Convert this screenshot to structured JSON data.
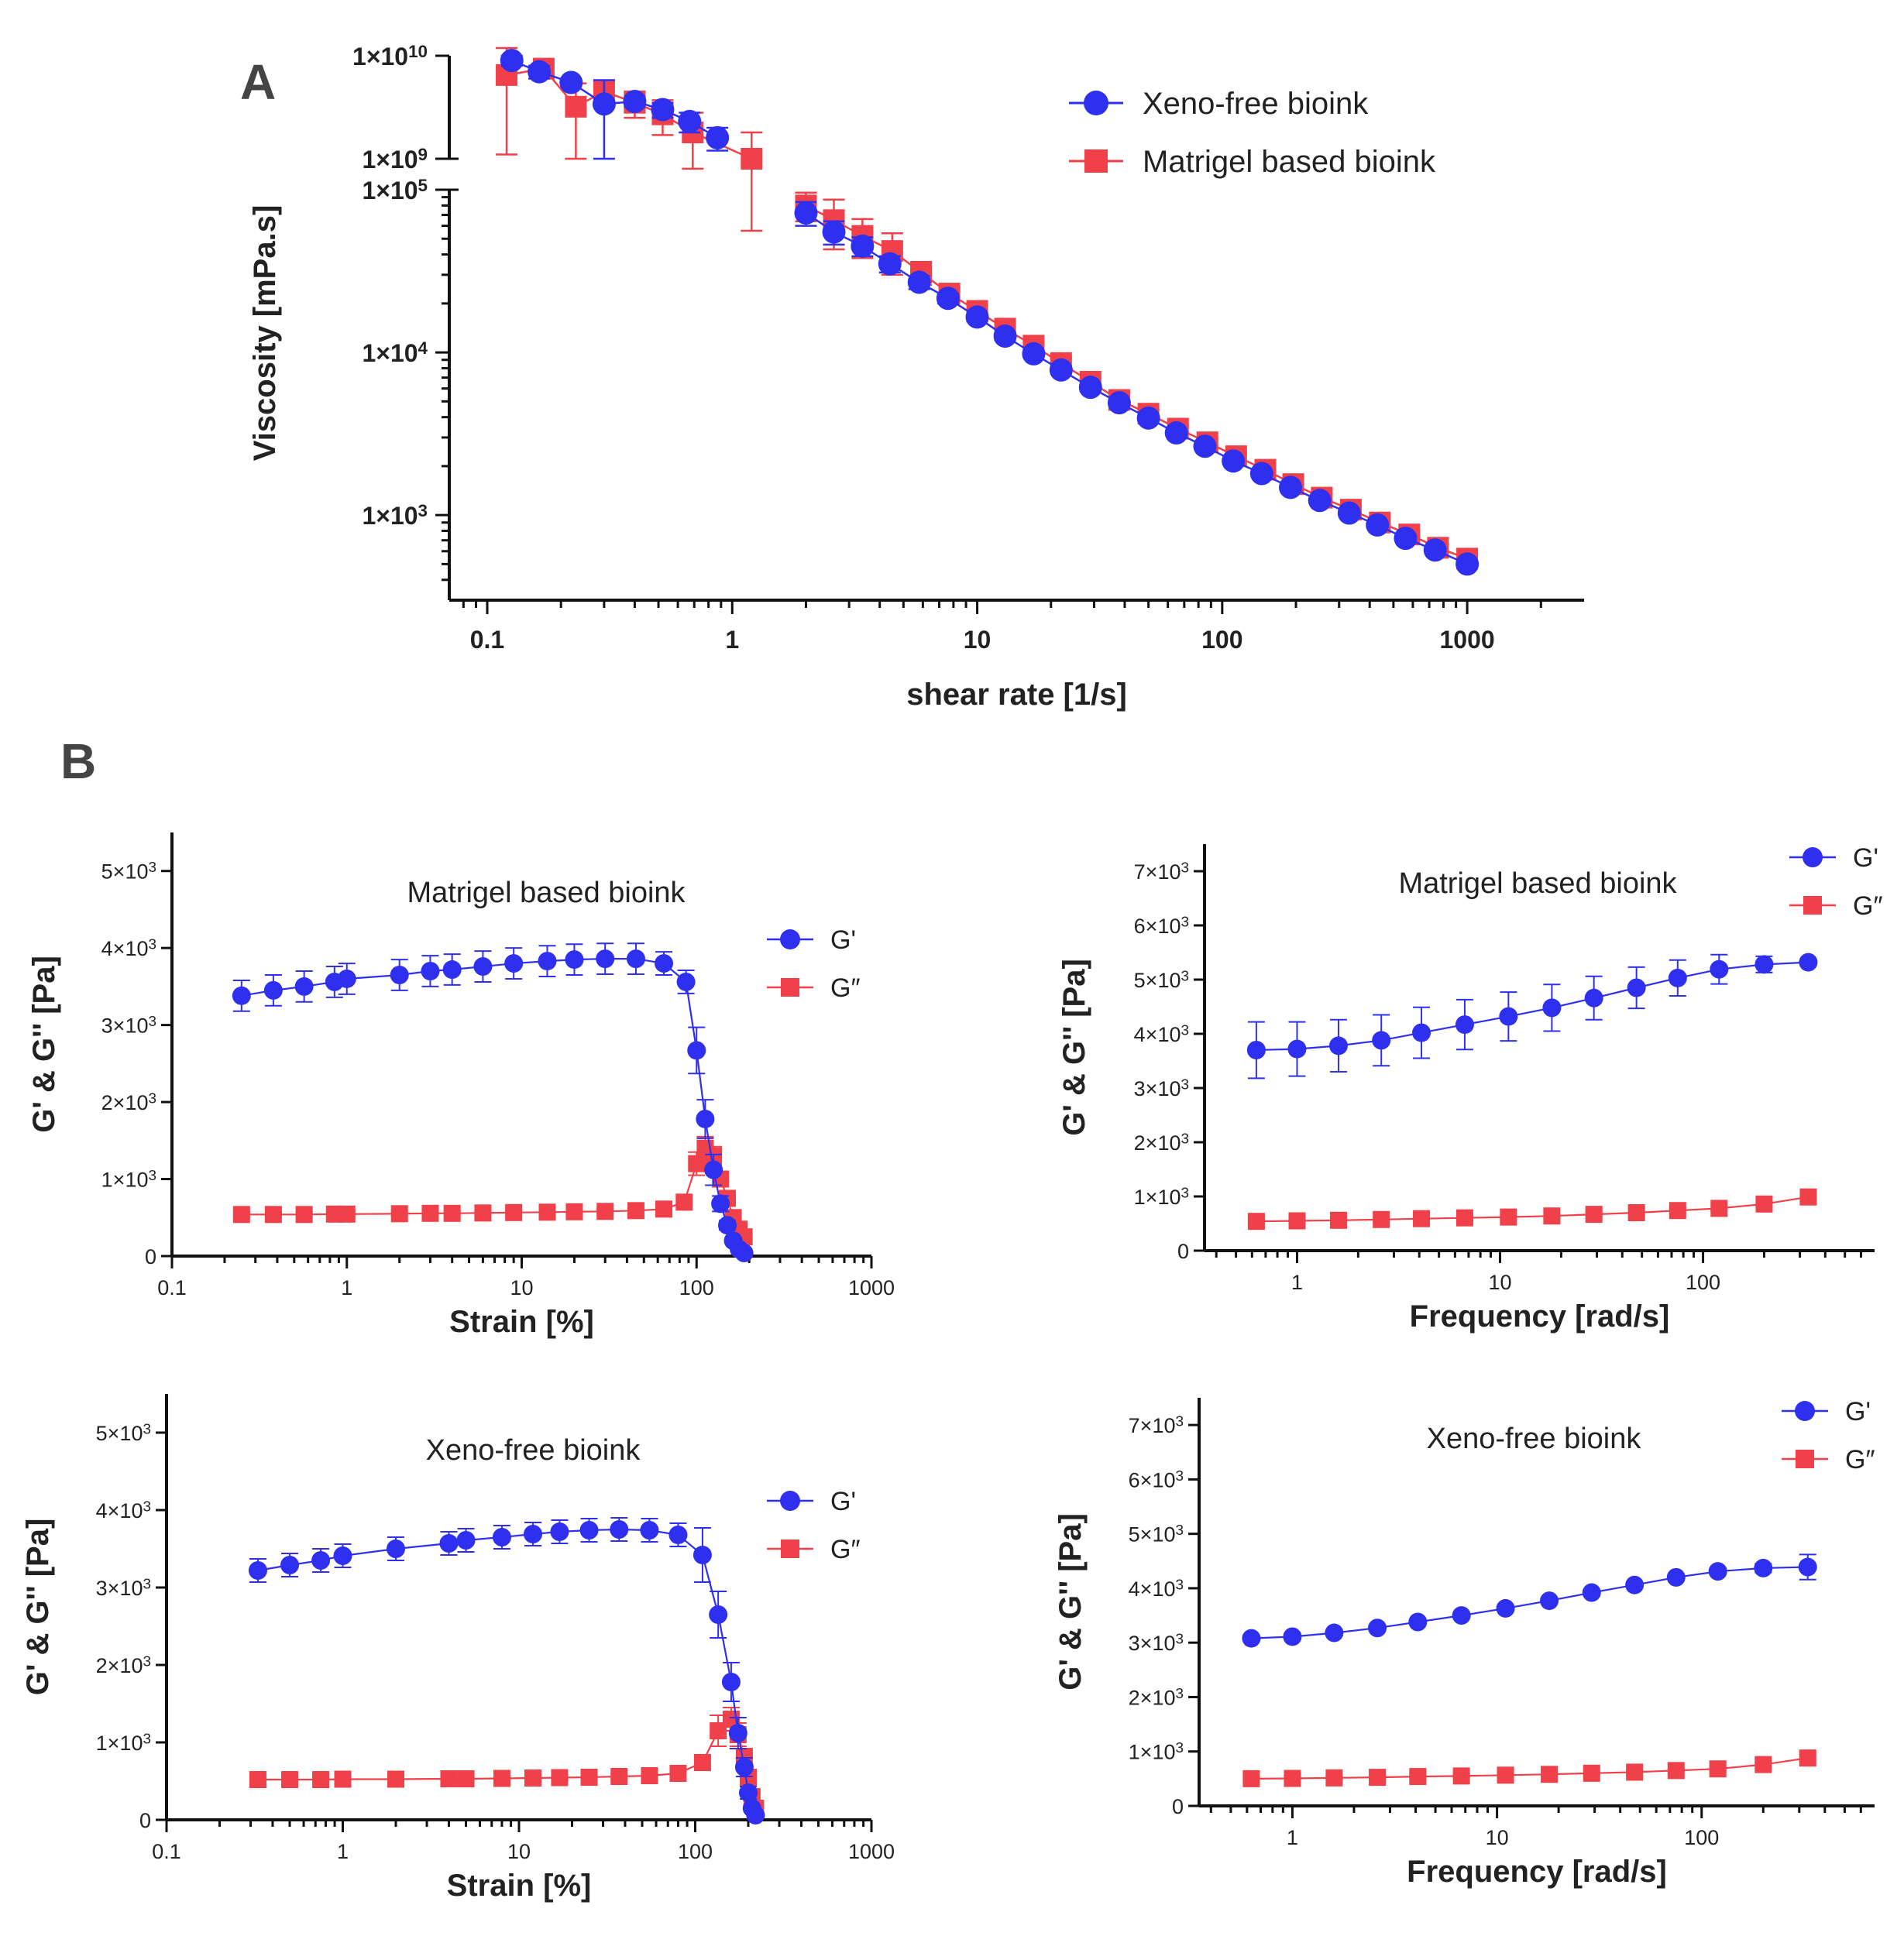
{
  "colors": {
    "xeno": "#2f2ff0",
    "matrigel": "#f0404a",
    "axis": "#111111"
  },
  "panel_labels": {
    "a": "A",
    "b": "B"
  },
  "chart_data": [
    {
      "id": "A",
      "type": "scatter",
      "title": "",
      "xlabel": "shear rate [1/s]",
      "ylabel": "Viscosity [mPa.s]",
      "xscale": "log",
      "yscale": "log-broken",
      "xlim": [
        0.07,
        3000
      ],
      "y_segments": [
        {
          "range": [
            1000000000.0,
            10000000000.0
          ]
        },
        {
          "range": [
            300,
            100000
          ]
        }
      ],
      "x_tick_values": [
        0.1,
        1,
        10,
        100,
        1000
      ],
      "x_tick_labels": [
        "0.1",
        "1",
        "10",
        "100",
        "1000"
      ],
      "y_tick_values": [
        10000000000.0,
        1000000000.0,
        100000,
        10000,
        1000
      ],
      "y_tick_labels": [
        {
          "base": "1×10",
          "exp": "10"
        },
        {
          "base": "1×10",
          "exp": "9"
        },
        {
          "base": "1×10",
          "exp": "5"
        },
        {
          "base": "1×10",
          "exp": "4"
        },
        {
          "base": "1×10",
          "exp": "3"
        }
      ],
      "legend": [
        "Xeno-free bioink",
        "Matrigel based bioink"
      ],
      "legend_position": "top-right",
      "series": [
        {
          "name": "Xeno-free bioink",
          "marker": "circle",
          "color_key": "xeno",
          "x": [
            0.126,
            0.163,
            0.22,
            0.3,
            0.4,
            0.52,
            0.67,
            0.87,
            2.0,
            2.6,
            3.4,
            4.4,
            5.8,
            7.6,
            10,
            13,
            17,
            22,
            29,
            38,
            50,
            65,
            85,
            111,
            145,
            190,
            250,
            330,
            430,
            560,
            740,
            1000
          ],
          "y": [
            9000000000.0,
            7000000000.0,
            5500000000.0,
            3400000000.0,
            3600000000.0,
            3000000000.0,
            2300000000.0,
            1600000000.0,
            72000,
            55000,
            45000,
            35000,
            27000,
            21500,
            16500,
            12600,
            9800,
            7800,
            6100,
            4900,
            3950,
            3200,
            2650,
            2150,
            1800,
            1480,
            1230,
            1030,
            870,
            720,
            610,
            500
          ],
          "err": [
            1000000000.0,
            1000000000.0,
            300000000.0,
            2400000000.0,
            400000000.0,
            500000000.0,
            500000000.0,
            400000000.0,
            12000,
            9000,
            6000,
            4000,
            2500,
            1500,
            1000,
            700,
            500,
            400,
            300,
            200,
            150,
            120,
            100,
            80,
            60,
            50,
            40,
            35,
            30,
            25,
            25,
            20
          ]
        },
        {
          "name": "Matrigel based bioink",
          "marker": "square",
          "color_key": "matrigel",
          "x": [
            0.12,
            0.17,
            0.23,
            0.3,
            0.4,
            0.52,
            0.69,
            1.2,
            2.0,
            2.6,
            3.4,
            4.5,
            5.9,
            7.7,
            10,
            13,
            17,
            22,
            29,
            38,
            50,
            66,
            87,
            114,
            150,
            195,
            255,
            335,
            440,
            580,
            760,
            1000
          ],
          "y": [
            6500000000.0,
            7500000000.0,
            3200000000.0,
            4500000000.0,
            3500000000.0,
            2700000000.0,
            1800000000.0,
            1000000000.0,
            80000,
            65000,
            52000,
            42000,
            31000,
            23000,
            18000,
            14000,
            11000,
            8600,
            6600,
            5100,
            4200,
            3400,
            2800,
            2300,
            1900,
            1550,
            1280,
            1080,
            900,
            760,
            630,
            540
          ],
          "err": [
            5400000000.0,
            1000000000.0,
            2200000000.0,
            1000000000.0,
            1000000000.0,
            1000000000.0,
            1000000000.0,
            800000000.0,
            16000,
            22000,
            14000,
            12000,
            5000,
            2000,
            1500,
            1000,
            800,
            600,
            400,
            300,
            250,
            200,
            150,
            120,
            100,
            80,
            60,
            50,
            40,
            35,
            30,
            25
          ]
        }
      ]
    },
    {
      "id": "B1",
      "type": "scatter",
      "title": "Matrigel based bioink",
      "xlabel": "Strain [%]",
      "ylabel": "G' & G'' [Pa]",
      "xscale": "log",
      "xlim": [
        0.1,
        1000
      ],
      "ylim": [
        0,
        5500
      ],
      "x_tick_values": [
        0.1,
        1,
        10,
        100,
        1000
      ],
      "x_tick_labels": [
        "0.1",
        "1",
        "10",
        "100",
        "1000"
      ],
      "y_tick_values": [
        0,
        1000,
        2000,
        3000,
        4000,
        5000
      ],
      "y_tick_labels": [
        {
          "base": "0",
          "exp": ""
        },
        {
          "base": "1×10",
          "exp": "3"
        },
        {
          "base": "2×10",
          "exp": "3"
        },
        {
          "base": "3×10",
          "exp": "3"
        },
        {
          "base": "4×10",
          "exp": "3"
        },
        {
          "base": "5×10",
          "exp": "3"
        }
      ],
      "legend": [
        "G'",
        "G″"
      ],
      "legend_position": "top-right",
      "series": [
        {
          "name": "G'",
          "marker": "circle",
          "color_key": "xeno",
          "x": [
            0.25,
            0.38,
            0.57,
            0.85,
            1.0,
            2.0,
            3.0,
            4.0,
            6.0,
            9.0,
            14,
            20,
            30,
            45,
            65,
            87,
            100,
            112,
            125,
            137,
            150,
            162,
            175,
            187
          ],
          "y": [
            3380,
            3450,
            3500,
            3560,
            3600,
            3650,
            3700,
            3720,
            3760,
            3800,
            3830,
            3850,
            3860,
            3860,
            3800,
            3560,
            2670,
            1780,
            1120,
            680,
            400,
            200,
            90,
            40
          ],
          "err": [
            200,
            200,
            200,
            200,
            200,
            200,
            200,
            200,
            200,
            200,
            200,
            200,
            200,
            200,
            150,
            150,
            300,
            250,
            200,
            100,
            60,
            40,
            20,
            15
          ]
        },
        {
          "name": "G″",
          "marker": "square",
          "color_key": "matrigel",
          "x": [
            0.25,
            0.38,
            0.57,
            0.85,
            1.0,
            2.0,
            3.0,
            4.0,
            6.0,
            9.0,
            14,
            20,
            30,
            45,
            65,
            85,
            100,
            112,
            125,
            137,
            150,
            162,
            175,
            187
          ],
          "y": [
            540,
            540,
            540,
            545,
            545,
            550,
            555,
            555,
            560,
            565,
            570,
            575,
            580,
            590,
            610,
            700,
            1200,
            1400,
            1300,
            1000,
            750,
            500,
            350,
            250
          ],
          "err": [
            30,
            30,
            30,
            30,
            30,
            30,
            30,
            30,
            30,
            30,
            30,
            30,
            30,
            30,
            30,
            50,
            150,
            150,
            120,
            100,
            80,
            60,
            50,
            40
          ]
        }
      ]
    },
    {
      "id": "B2",
      "type": "scatter",
      "title": "Matrigel based bioink",
      "xlabel": "Frequency [rad/s]",
      "ylabel": "G' & G'' [Pa]",
      "xscale": "log",
      "xlim": [
        0.35,
        700
      ],
      "ylim": [
        0,
        7500
      ],
      "x_tick_values": [
        1,
        10,
        100
      ],
      "x_tick_labels": [
        "1",
        "10",
        "100"
      ],
      "y_tick_values": [
        0,
        1000,
        2000,
        3000,
        4000,
        5000,
        6000,
        7000
      ],
      "y_tick_labels": [
        {
          "base": "0",
          "exp": ""
        },
        {
          "base": "1×10",
          "exp": "3"
        },
        {
          "base": "2×10",
          "exp": "3"
        },
        {
          "base": "3×10",
          "exp": "3"
        },
        {
          "base": "4×10",
          "exp": "3"
        },
        {
          "base": "5×10",
          "exp": "3"
        },
        {
          "base": "6×10",
          "exp": "3"
        },
        {
          "base": "7×10",
          "exp": "3"
        }
      ],
      "legend": [
        "G'",
        "G″"
      ],
      "legend_position": "top-right",
      "series": [
        {
          "name": "G'",
          "marker": "circle",
          "color_key": "xeno",
          "x": [
            0.63,
            1.0,
            1.6,
            2.6,
            4.1,
            6.7,
            11,
            18,
            29,
            47,
            75,
            120,
            200,
            330
          ],
          "y": [
            3700,
            3720,
            3780,
            3880,
            4020,
            4170,
            4320,
            4480,
            4660,
            4850,
            5030,
            5190,
            5280,
            5320
          ],
          "err": [
            520,
            500,
            480,
            470,
            470,
            460,
            450,
            430,
            400,
            380,
            330,
            270,
            150,
            60
          ]
        },
        {
          "name": "G″",
          "marker": "square",
          "color_key": "matrigel",
          "x": [
            0.63,
            1.0,
            1.6,
            2.6,
            4.1,
            6.7,
            11,
            18,
            29,
            47,
            75,
            120,
            200,
            330
          ],
          "y": [
            540,
            550,
            560,
            575,
            590,
            605,
            620,
            640,
            670,
            700,
            740,
            780,
            860,
            990
          ],
          "err": [
            40,
            40,
            40,
            40,
            40,
            40,
            40,
            40,
            40,
            40,
            50,
            50,
            60,
            70
          ]
        }
      ]
    },
    {
      "id": "B3",
      "type": "scatter",
      "title": "Xeno-free bioink",
      "xlabel": "Strain [%]",
      "ylabel": "G' & G'' [Pa]",
      "xscale": "log",
      "xlim": [
        0.1,
        1000
      ],
      "ylim": [
        0,
        5500
      ],
      "x_tick_values": [
        0.1,
        1,
        10,
        100,
        1000
      ],
      "x_tick_labels": [
        "0.1",
        "1",
        "10",
        "100",
        "1000"
      ],
      "y_tick_values": [
        0,
        1000,
        2000,
        3000,
        4000,
        5000
      ],
      "y_tick_labels": [
        {
          "base": "0",
          "exp": ""
        },
        {
          "base": "1×10",
          "exp": "3"
        },
        {
          "base": "2×10",
          "exp": "3"
        },
        {
          "base": "3×10",
          "exp": "3"
        },
        {
          "base": "4×10",
          "exp": "3"
        },
        {
          "base": "5×10",
          "exp": "3"
        }
      ],
      "legend": [
        "G'",
        "G″"
      ],
      "legend_position": "top-right",
      "series": [
        {
          "name": "G'",
          "marker": "circle",
          "color_key": "xeno",
          "x": [
            0.33,
            0.5,
            0.75,
            1.0,
            2.0,
            4.0,
            5.0,
            8.0,
            12,
            17,
            25,
            37,
            55,
            80,
            110,
            135,
            160,
            175,
            190,
            200,
            210,
            220
          ],
          "y": [
            3220,
            3290,
            3350,
            3410,
            3500,
            3570,
            3610,
            3650,
            3690,
            3720,
            3740,
            3750,
            3740,
            3680,
            3420,
            2650,
            1780,
            1120,
            680,
            350,
            150,
            60
          ],
          "err": [
            150,
            150,
            150,
            150,
            150,
            150,
            150,
            150,
            150,
            150,
            150,
            150,
            150,
            150,
            350,
            300,
            250,
            200,
            120,
            80,
            40,
            20
          ]
        },
        {
          "name": "G″",
          "marker": "square",
          "color_key": "matrigel",
          "x": [
            0.33,
            0.5,
            0.75,
            1.0,
            2.0,
            4.0,
            5.0,
            8.0,
            12,
            17,
            25,
            37,
            55,
            80,
            110,
            135,
            160,
            175,
            190,
            200,
            210,
            220
          ],
          "y": [
            520,
            520,
            520,
            525,
            525,
            530,
            530,
            535,
            540,
            545,
            550,
            560,
            570,
            600,
            740,
            1150,
            1300,
            1100,
            800,
            550,
            300,
            150
          ],
          "err": [
            30,
            30,
            30,
            30,
            30,
            30,
            30,
            30,
            30,
            30,
            30,
            30,
            30,
            40,
            80,
            200,
            150,
            150,
            120,
            100,
            60,
            40
          ]
        }
      ]
    },
    {
      "id": "B4",
      "type": "scatter",
      "title": "Xeno-free bioink",
      "xlabel": "Frequency [rad/s]",
      "ylabel": "G' & G'' [Pa]",
      "xscale": "log",
      "xlim": [
        0.35,
        700
      ],
      "ylim": [
        0,
        7500
      ],
      "x_tick_values": [
        1,
        10,
        100
      ],
      "x_tick_labels": [
        "1",
        "10",
        "100"
      ],
      "y_tick_values": [
        0,
        1000,
        2000,
        3000,
        4000,
        5000,
        6000,
        7000
      ],
      "y_tick_labels": [
        {
          "base": "0",
          "exp": ""
        },
        {
          "base": "1×10",
          "exp": "3"
        },
        {
          "base": "2×10",
          "exp": "3"
        },
        {
          "base": "3×10",
          "exp": "3"
        },
        {
          "base": "4×10",
          "exp": "3"
        },
        {
          "base": "5×10",
          "exp": "3"
        },
        {
          "base": "6×10",
          "exp": "3"
        },
        {
          "base": "7×10",
          "exp": "3"
        }
      ],
      "legend": [
        "G'",
        "G″"
      ],
      "legend_position": "top-right",
      "series": [
        {
          "name": "G'",
          "marker": "circle",
          "color_key": "xeno",
          "x": [
            0.63,
            1.0,
            1.6,
            2.6,
            4.1,
            6.7,
            11,
            18,
            29,
            47,
            75,
            120,
            200,
            330
          ],
          "y": [
            3080,
            3110,
            3180,
            3270,
            3380,
            3500,
            3630,
            3770,
            3920,
            4060,
            4200,
            4310,
            4370,
            4390
          ],
          "err": [
            40,
            40,
            40,
            40,
            40,
            40,
            40,
            40,
            40,
            40,
            50,
            60,
            80,
            230
          ]
        },
        {
          "name": "G″",
          "marker": "square",
          "color_key": "matrigel",
          "x": [
            0.63,
            1.0,
            1.6,
            2.6,
            4.1,
            6.7,
            11,
            18,
            29,
            47,
            75,
            120,
            200,
            330
          ],
          "y": [
            500,
            505,
            515,
            525,
            540,
            550,
            565,
            580,
            600,
            620,
            650,
            680,
            760,
            880
          ],
          "err": [
            30,
            30,
            30,
            30,
            30,
            30,
            30,
            30,
            30,
            30,
            30,
            30,
            40,
            60
          ]
        }
      ]
    }
  ]
}
